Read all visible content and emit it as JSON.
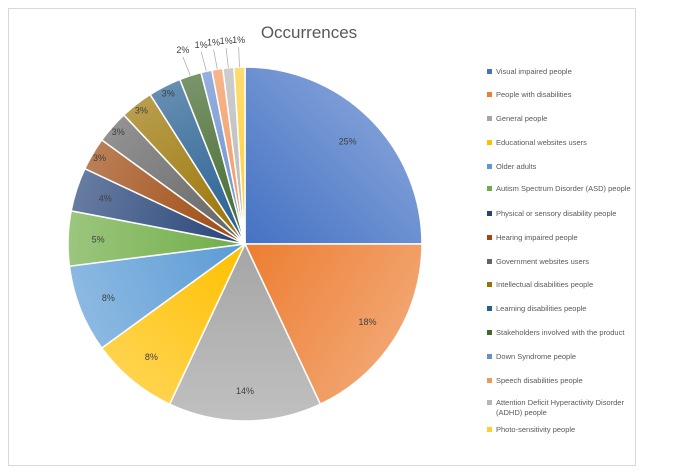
{
  "chart_data": {
    "type": "pie",
    "title": "Occurrences",
    "legend_position": "right",
    "categories": [
      "Visual impaired people",
      "People with disabilities",
      "General people",
      "Educational websites users",
      "Older adults",
      "Autism Spectrum Disorder (ASD) people",
      "Physical or sensory disability people",
      "Hearing impaired people",
      "Government websites users",
      "Intellectual disabilities people",
      "Learning disabilities people",
      "Stakeholders involved with the product",
      "Down Syndrome people",
      "Speech disabilities people",
      "Attention Deficit Hyperactivity Disorder (ADHD) people",
      "Photo-sensitivity people"
    ],
    "values": [
      25,
      18,
      14,
      8,
      8,
      5,
      4,
      3,
      3,
      3,
      3,
      2,
      1,
      1,
      1,
      1
    ],
    "labels": [
      "25%",
      "18%",
      "14%",
      "8%",
      "8%",
      "5%",
      "4%",
      "3%",
      "3%",
      "3%",
      "3%",
      "2%",
      "1%",
      "1%",
      "1%",
      "1%"
    ],
    "colors": [
      "#4472c4",
      "#ed7d31",
      "#a5a5a5",
      "#ffc000",
      "#5b9bd5",
      "#70ad47",
      "#264478",
      "#9e480e",
      "#636363",
      "#997300",
      "#255e91",
      "#43682b",
      "#698ed0",
      "#f1975a",
      "#b7b7b7",
      "#ffcd33"
    ]
  }
}
